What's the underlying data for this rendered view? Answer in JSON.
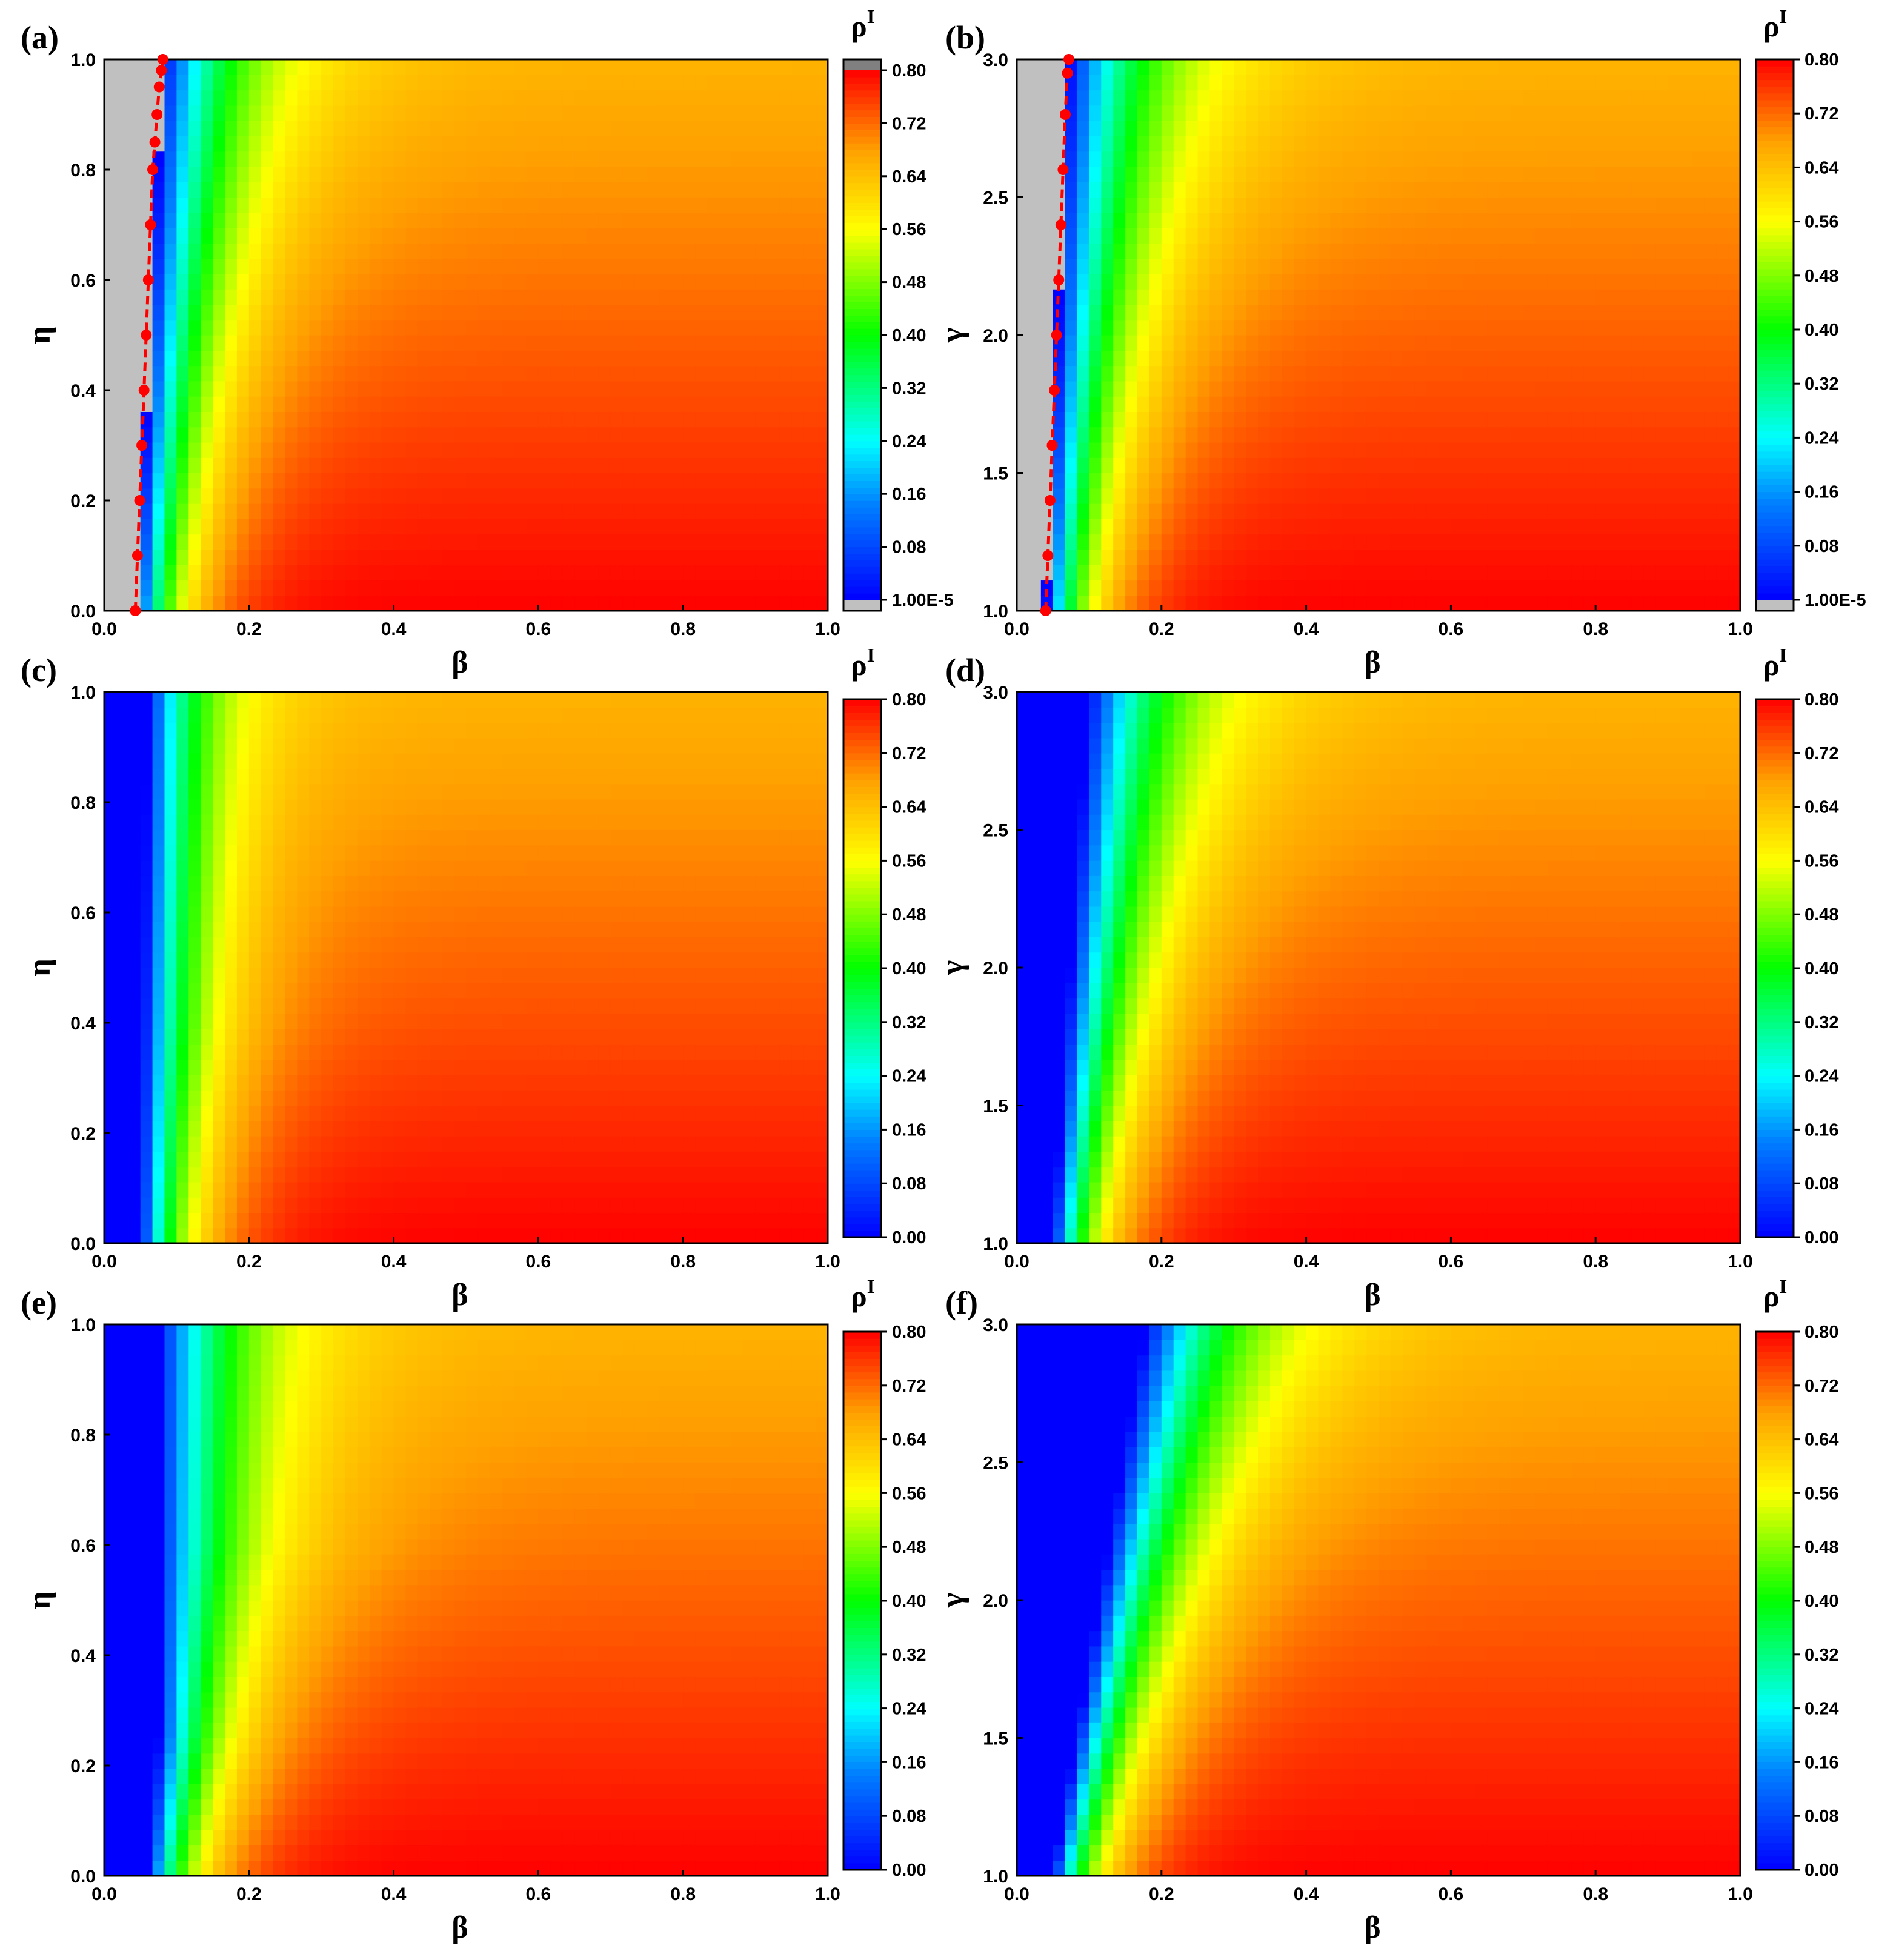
{
  "figure": {
    "description_colors": {
      "inactive": "#c0c0c0",
      "over": "#808080",
      "threshold": "#ff0000"
    }
  },
  "chart_data": [
    {
      "type": "heatmap",
      "panel": "(a)",
      "model": "eta",
      "xlabel": "β",
      "ylabel": "η",
      "xlim": [
        0,
        1
      ],
      "ylim": [
        0,
        1
      ],
      "xticks": [
        "0.0",
        "0.2",
        "0.4",
        "0.6",
        "0.8",
        "1.0"
      ],
      "yticks": [
        "0.0",
        "0.2",
        "0.4",
        "0.6",
        "0.8",
        "1.0"
      ],
      "colorbar": {
        "title": "ρ",
        "title_sup": "I",
        "range": [
          0,
          0.8
        ],
        "ticks": [
          "1.00E-5",
          "0.08",
          "0.16",
          "0.24",
          "0.32",
          "0.40",
          "0.48",
          "0.56",
          "0.64",
          "0.72",
          "0.80"
        ],
        "under_color": "#c0c0c0",
        "over_color": "#808080"
      },
      "inactive_region": true,
      "threshold_curve": {
        "x": [
          0.043,
          0.046,
          0.049,
          0.052,
          0.055,
          0.058,
          0.061,
          0.064,
          0.067,
          0.07,
          0.073,
          0.076,
          0.079,
          0.081
        ],
        "y": [
          0.0,
          0.1,
          0.2,
          0.3,
          0.4,
          0.5,
          0.6,
          0.7,
          0.8,
          0.85,
          0.9,
          0.95,
          0.98,
          1.0
        ]
      }
    },
    {
      "type": "heatmap",
      "panel": "(b)",
      "model": "gamma",
      "xlabel": "β",
      "ylabel": "γ",
      "xlim": [
        0,
        1
      ],
      "ylim": [
        1,
        3
      ],
      "xticks": [
        "0.0",
        "0.2",
        "0.4",
        "0.6",
        "0.8",
        "1.0"
      ],
      "yticks": [
        "1.0",
        "1.5",
        "2.0",
        "2.5",
        "3.0"
      ],
      "colorbar": {
        "title": "ρ",
        "title_sup": "I",
        "range": [
          0,
          0.8
        ],
        "ticks": [
          "1.00E-5",
          "0.08",
          "0.16",
          "0.24",
          "0.32",
          "0.40",
          "0.48",
          "0.56",
          "0.64",
          "0.72",
          "0.80"
        ],
        "under_color": "#c0c0c0",
        "over_color": null
      },
      "inactive_region": true,
      "threshold_curve": {
        "x": [
          0.04,
          0.043,
          0.046,
          0.049,
          0.052,
          0.055,
          0.058,
          0.061,
          0.064,
          0.067,
          0.07,
          0.072
        ],
        "y": [
          1.0,
          1.2,
          1.4,
          1.6,
          1.8,
          2.0,
          2.2,
          2.4,
          2.6,
          2.8,
          2.95,
          3.0
        ]
      }
    },
    {
      "type": "heatmap",
      "panel": "(c)",
      "model": "eta",
      "xlabel": "β",
      "ylabel": "η",
      "xlim": [
        0,
        1
      ],
      "ylim": [
        0,
        1
      ],
      "xticks": [
        "0.0",
        "0.2",
        "0.4",
        "0.6",
        "0.8",
        "1.0"
      ],
      "yticks": [
        "0.0",
        "0.2",
        "0.4",
        "0.6",
        "0.8",
        "1.0"
      ],
      "colorbar": {
        "title": "ρ",
        "title_sup": "I",
        "range": [
          0,
          0.8
        ],
        "ticks": [
          "0.00",
          "0.08",
          "0.16",
          "0.24",
          "0.32",
          "0.40",
          "0.48",
          "0.56",
          "0.64",
          "0.72",
          "0.80"
        ],
        "under_color": null,
        "over_color": null
      },
      "inactive_region": false
    },
    {
      "type": "heatmap",
      "panel": "(d)",
      "model": "gamma",
      "xlabel": "β",
      "ylabel": "γ",
      "xlim": [
        0,
        1
      ],
      "ylim": [
        1,
        3
      ],
      "xticks": [
        "0.0",
        "0.2",
        "0.4",
        "0.6",
        "0.8",
        "1.0"
      ],
      "yticks": [
        "1.0",
        "1.5",
        "2.0",
        "2.5",
        "3.0"
      ],
      "colorbar": {
        "title": "ρ",
        "title_sup": "I",
        "range": [
          0,
          0.8
        ],
        "ticks": [
          "0.00",
          "0.08",
          "0.16",
          "0.24",
          "0.32",
          "0.40",
          "0.48",
          "0.56",
          "0.64",
          "0.72",
          "0.80"
        ],
        "under_color": null,
        "over_color": null
      },
      "inactive_region": false
    },
    {
      "type": "heatmap",
      "panel": "(e)",
      "model": "eta",
      "xlabel": "β",
      "ylabel": "η",
      "xlim": [
        0,
        1
      ],
      "ylim": [
        0,
        1
      ],
      "xticks": [
        "0.0",
        "0.2",
        "0.4",
        "0.6",
        "0.8",
        "1.0"
      ],
      "yticks": [
        "0.0",
        "0.2",
        "0.4",
        "0.6",
        "0.8",
        "1.0"
      ],
      "colorbar": {
        "title": "ρ",
        "title_sup": "I",
        "range": [
          0,
          0.8
        ],
        "ticks": [
          "0.00",
          "0.08",
          "0.16",
          "0.24",
          "0.32",
          "0.40",
          "0.48",
          "0.56",
          "0.64",
          "0.72",
          "0.80"
        ],
        "under_color": null,
        "over_color": null
      },
      "inactive_region": false
    },
    {
      "type": "heatmap",
      "panel": "(f)",
      "model": "gamma",
      "xlabel": "β",
      "ylabel": "γ",
      "xlim": [
        0,
        1
      ],
      "ylim": [
        1,
        3
      ],
      "xticks": [
        "0.0",
        "0.2",
        "0.4",
        "0.6",
        "0.8",
        "1.0"
      ],
      "yticks": [
        "1.0",
        "1.5",
        "2.0",
        "2.5",
        "3.0"
      ],
      "colorbar": {
        "title": "ρ",
        "title_sup": "I",
        "range": [
          0,
          0.8
        ],
        "ticks": [
          "0.00",
          "0.08",
          "0.16",
          "0.24",
          "0.32",
          "0.40",
          "0.48",
          "0.56",
          "0.64",
          "0.72",
          "0.80"
        ],
        "under_color": null,
        "over_color": null
      },
      "inactive_region": false
    }
  ]
}
